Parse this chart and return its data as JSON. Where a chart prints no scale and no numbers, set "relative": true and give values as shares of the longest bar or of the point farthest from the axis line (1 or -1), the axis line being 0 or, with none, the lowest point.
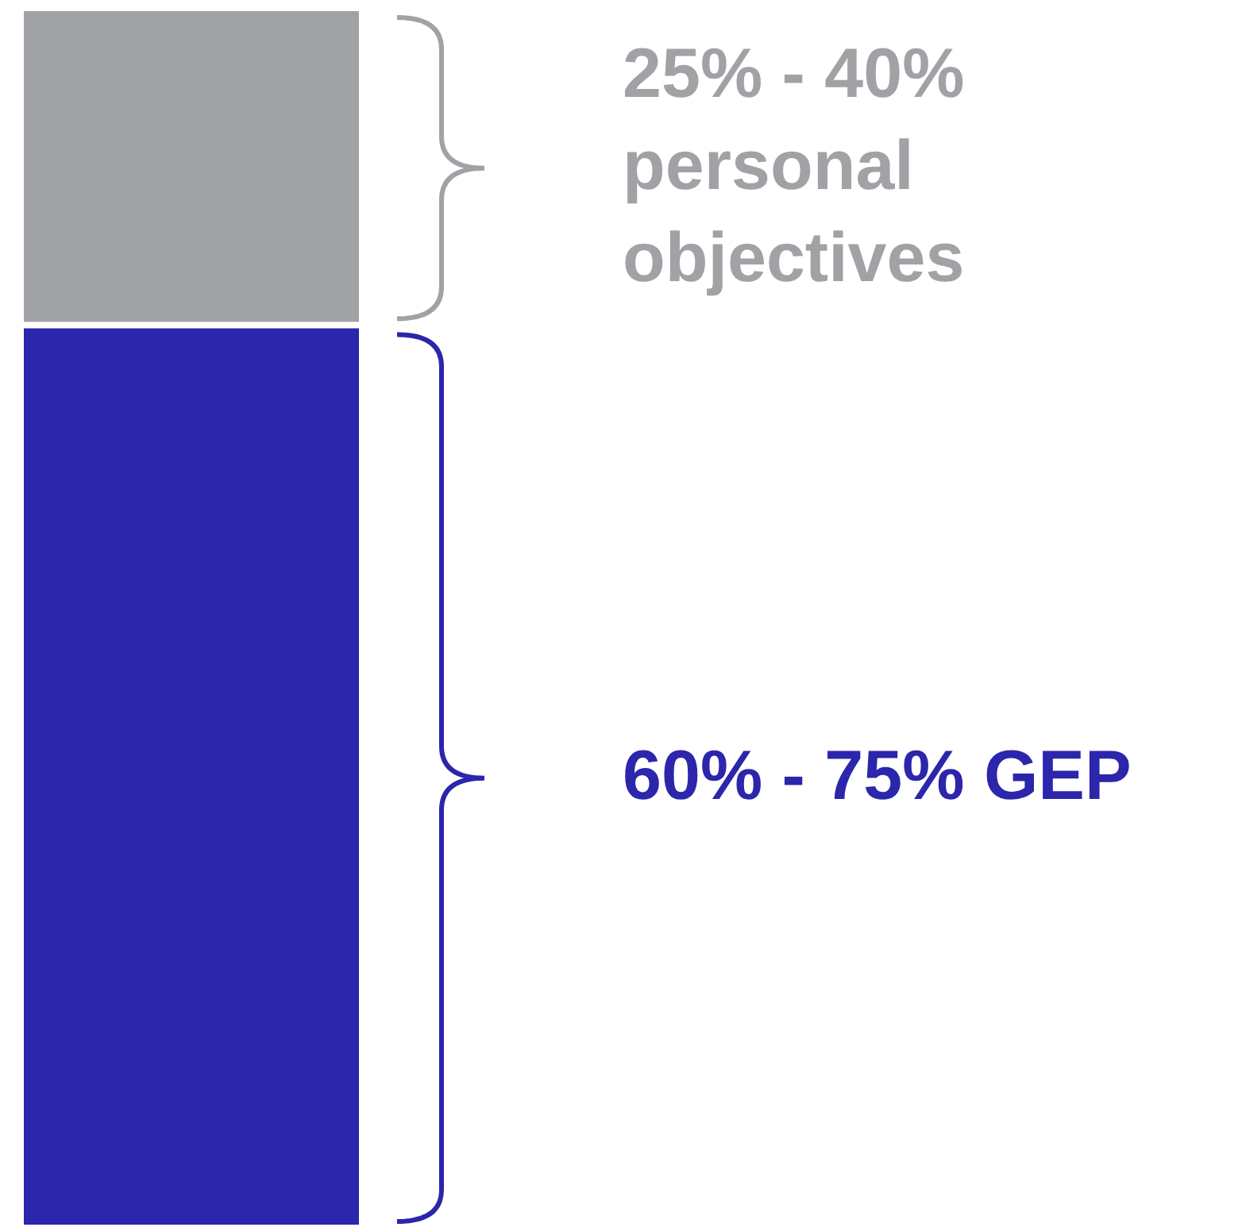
{
  "chart_data": {
    "type": "bar",
    "stacked": true,
    "relative": true,
    "categories": [
      null
    ],
    "series": [
      {
        "color": "#2b26ab",
        "values": [
          0.74
        ]
      },
      {
        "color": "#a0a2a5",
        "values": [
          0.26
        ]
      }
    ],
    "annotations": [
      "60% - 75% GEP",
      "25% - 40% personal objectives"
    ]
  }
}
